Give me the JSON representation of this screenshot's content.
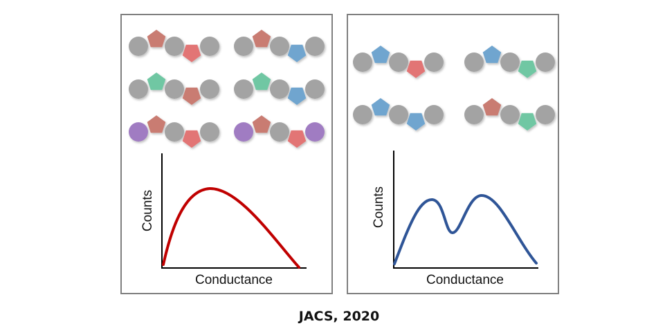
{
  "colors": {
    "gray": "#a3a3a3",
    "brown": "#c97b72",
    "red": "#e27474",
    "blue": "#70a5cf",
    "green": "#70c7a3",
    "purple": "#a07cc2",
    "red_curve": "#c00000",
    "blue_curve": "#2f5597"
  },
  "left_panel": {
    "molecules": [
      [
        "gray",
        "brown",
        "gray",
        "red",
        "gray"
      ],
      [
        "gray",
        "brown",
        "gray",
        "blue",
        "gray"
      ],
      [
        "gray",
        "green",
        "gray",
        "brown",
        "gray"
      ],
      [
        "gray",
        "green",
        "gray",
        "blue",
        "gray"
      ],
      [
        "purple",
        "brown",
        "gray",
        "red",
        "gray"
      ],
      [
        "purple",
        "brown",
        "gray",
        "red",
        "purple"
      ]
    ],
    "xlabel": "Conductance",
    "ylabel": "Counts"
  },
  "right_panel": {
    "molecules": [
      [
        "gray",
        "blue",
        "gray",
        "red",
        "gray"
      ],
      [
        "gray",
        "blue",
        "gray",
        "green",
        "gray"
      ],
      [
        "gray",
        "blue",
        "gray",
        "blue",
        "gray"
      ],
      [
        "gray",
        "brown",
        "gray",
        "green",
        "gray"
      ]
    ],
    "xlabel": "Conductance",
    "ylabel": "Counts"
  },
  "caption": "JACS, 2020"
}
